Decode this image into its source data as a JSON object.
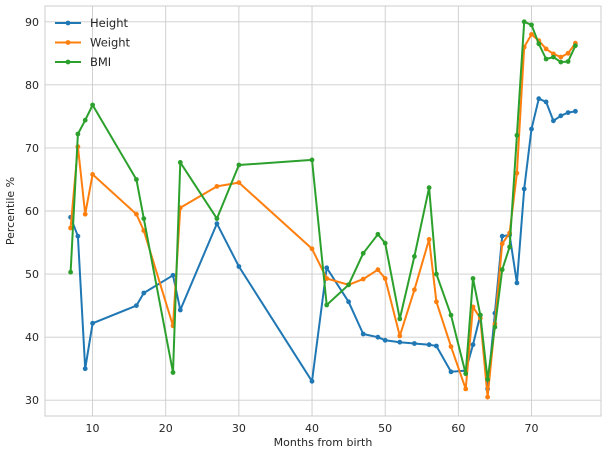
{
  "chart_data": {
    "type": "line",
    "title": "",
    "xlabel": "Months from birth",
    "ylabel": "Percentile %",
    "xlim": [
      3.5,
      79.5
    ],
    "ylim": [
      27.5,
      92.5
    ],
    "xticks": [
      10,
      20,
      30,
      40,
      50,
      60,
      70
    ],
    "yticks": [
      30,
      40,
      50,
      60,
      70,
      80,
      90
    ],
    "grid": true,
    "legend_position": "top-left",
    "series": [
      {
        "name": "Height",
        "color": "#1f77b4",
        "points": [
          [
            7,
            59
          ],
          [
            8,
            56
          ],
          [
            9,
            35
          ],
          [
            10,
            42.2
          ],
          [
            16,
            45
          ],
          [
            17,
            47
          ],
          [
            21,
            49.8
          ],
          [
            22,
            44.3
          ],
          [
            27,
            58
          ],
          [
            30,
            51.2
          ],
          [
            40,
            33
          ],
          [
            42,
            51
          ],
          [
            45,
            45.6
          ],
          [
            47,
            40.5
          ],
          [
            49,
            40
          ],
          [
            50,
            39.5
          ],
          [
            52,
            39.2
          ],
          [
            54,
            39
          ],
          [
            56,
            38.8
          ],
          [
            57,
            38.6
          ],
          [
            59,
            34.5
          ],
          [
            61,
            34.7
          ],
          [
            62,
            38.8
          ],
          [
            63,
            43.5
          ],
          [
            64,
            31.8
          ],
          [
            65,
            43.8
          ],
          [
            66,
            56
          ],
          [
            67,
            56.2
          ],
          [
            68,
            48.6
          ],
          [
            69,
            63.5
          ],
          [
            70,
            73
          ],
          [
            71,
            77.8
          ],
          [
            72,
            77.3
          ],
          [
            73,
            74.3
          ],
          [
            74,
            75.1
          ],
          [
            75,
            75.6
          ],
          [
            76,
            75.8
          ]
        ]
      },
      {
        "name": "Weight",
        "color": "#ff7f0e",
        "points": [
          [
            7,
            57.3
          ],
          [
            8,
            70.2
          ],
          [
            9,
            59.5
          ],
          [
            10,
            65.8
          ],
          [
            16,
            59.5
          ],
          [
            17,
            56.9
          ],
          [
            21,
            41.8
          ],
          [
            22,
            60.5
          ],
          [
            27,
            63.9
          ],
          [
            30,
            64.5
          ],
          [
            40,
            54
          ],
          [
            42,
            49.3
          ],
          [
            45,
            48.3
          ],
          [
            47,
            49.2
          ],
          [
            49,
            50.7
          ],
          [
            50,
            49.3
          ],
          [
            52,
            40.2
          ],
          [
            54,
            47.5
          ],
          [
            56,
            55.5
          ],
          [
            57,
            45.6
          ],
          [
            59,
            38.5
          ],
          [
            61,
            31.8
          ],
          [
            62,
            44.8
          ],
          [
            63,
            43
          ],
          [
            64,
            30.5
          ],
          [
            65,
            42.1
          ],
          [
            66,
            54.8
          ],
          [
            67,
            56.5
          ],
          [
            68,
            66
          ],
          [
            69,
            86
          ],
          [
            70,
            88
          ],
          [
            71,
            87
          ],
          [
            72,
            85.7
          ],
          [
            73,
            84.9
          ],
          [
            74,
            84.4
          ],
          [
            75,
            85
          ],
          [
            76,
            86.6
          ]
        ]
      },
      {
        "name": "BMI",
        "color": "#2ca02c",
        "points": [
          [
            7,
            50.3
          ],
          [
            8,
            72.2
          ],
          [
            9,
            74.4
          ],
          [
            10,
            76.8
          ],
          [
            16,
            65
          ],
          [
            17,
            58.8
          ],
          [
            21,
            34.4
          ],
          [
            22,
            67.7
          ],
          [
            27,
            58.8
          ],
          [
            30,
            67.3
          ],
          [
            40,
            68.1
          ],
          [
            42,
            45.1
          ],
          [
            45,
            48.3
          ],
          [
            47,
            53.3
          ],
          [
            49,
            56.3
          ],
          [
            50,
            54.9
          ],
          [
            52,
            42.9
          ],
          [
            54,
            52.8
          ],
          [
            56,
            63.7
          ],
          [
            57,
            50
          ],
          [
            59,
            43.5
          ],
          [
            61,
            34.2
          ],
          [
            62,
            49.3
          ],
          [
            63,
            43.5
          ],
          [
            64,
            33.3
          ],
          [
            65,
            41.6
          ],
          [
            66,
            50.7
          ],
          [
            67,
            54.3
          ],
          [
            68,
            72
          ],
          [
            69,
            90
          ],
          [
            70,
            89.5
          ],
          [
            71,
            86.5
          ],
          [
            72,
            84.1
          ],
          [
            73,
            84.4
          ],
          [
            74,
            83.6
          ],
          [
            75,
            83.7
          ],
          [
            76,
            86.2
          ]
        ]
      }
    ]
  }
}
